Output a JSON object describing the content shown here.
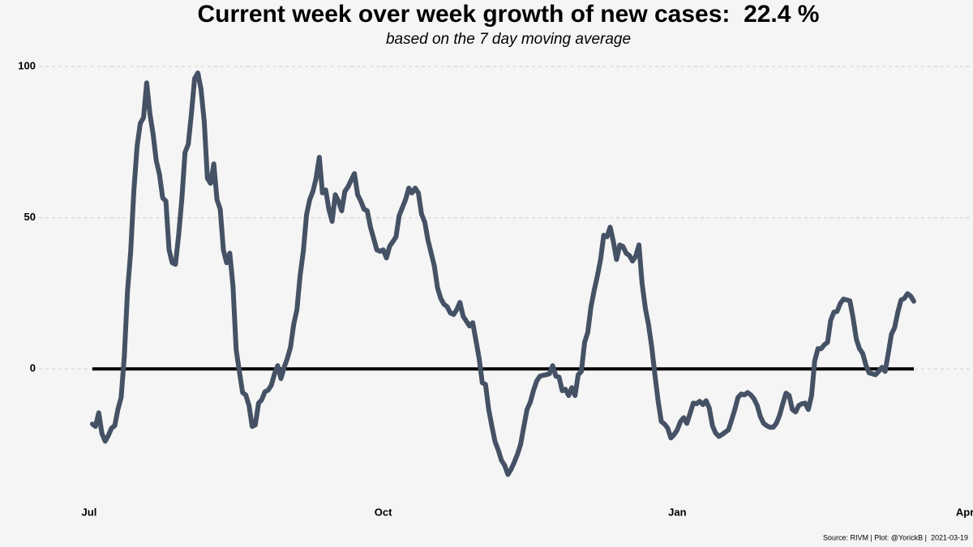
{
  "chart_data": {
    "type": "line",
    "title": "Current week over week growth of new cases:  22.4 %",
    "subtitle": "based on the 7 day moving average",
    "caption": "Source: RIVM | Plot: @YorickB |  2021-03-19",
    "color": "#455265",
    "hline": 0,
    "grid": true,
    "xlim": [
      -1,
      276
    ],
    "xticks": [
      {
        "value": 0,
        "label": "Jul"
      },
      {
        "value": 92,
        "label": "Oct"
      },
      {
        "value": 184,
        "label": "Jan"
      },
      {
        "value": 274,
        "label": "Apr"
      }
    ],
    "ylim": [
      -42,
      107
    ],
    "yticks": [
      0,
      50,
      100
    ],
    "x": [
      1,
      2,
      3,
      4,
      5,
      6,
      7,
      8,
      9,
      10,
      11,
      12,
      13,
      14,
      15,
      16,
      17,
      18,
      19,
      20,
      21,
      22,
      23,
      24,
      25,
      26,
      27,
      28,
      29,
      30,
      31,
      32,
      33,
      34,
      35,
      36,
      37,
      38,
      39,
      40,
      41,
      42,
      43,
      44,
      45,
      46,
      47,
      48,
      49,
      50,
      51,
      52,
      53,
      54,
      55,
      56,
      57,
      58,
      59,
      60,
      61,
      62,
      63,
      64,
      65,
      66,
      67,
      68,
      69,
      70,
      71,
      72,
      73,
      74,
      75,
      76,
      77,
      78,
      79,
      80,
      81,
      82,
      83,
      84,
      85,
      86,
      87,
      88,
      89,
      90,
      91,
      92,
      93,
      94,
      95,
      96,
      97,
      98,
      99,
      100,
      101,
      102,
      103,
      104,
      105,
      106,
      107,
      108,
      109,
      110,
      111,
      112,
      113,
      114,
      115,
      116,
      117,
      118,
      119,
      120,
      121,
      122,
      123,
      124,
      125,
      126,
      127,
      128,
      129,
      130,
      131,
      132,
      133,
      134,
      135,
      136,
      137,
      138,
      139,
      140,
      141,
      142,
      143,
      144,
      145,
      146,
      147,
      148,
      149,
      150,
      151,
      152,
      153,
      154,
      155,
      156,
      157,
      158,
      159,
      160,
      161,
      162,
      163,
      164,
      165,
      166,
      167,
      168,
      169,
      170,
      171,
      172,
      173,
      174,
      175,
      176,
      177,
      178,
      179,
      180,
      181,
      182,
      183,
      184,
      185,
      186,
      187,
      188,
      189,
      190,
      191,
      192,
      193,
      194,
      195,
      196,
      197,
      198,
      199,
      200,
      201,
      202,
      203,
      204,
      205,
      206,
      207,
      208,
      209,
      210,
      211,
      212,
      213,
      214,
      215,
      216,
      217,
      218,
      219,
      220,
      221,
      222,
      223,
      224,
      225,
      226,
      227,
      228,
      229,
      230,
      231,
      232,
      233,
      234,
      235,
      236,
      237,
      238,
      239,
      240,
      241,
      242,
      243,
      244,
      245,
      246,
      247,
      248,
      249,
      250,
      251,
      252,
      253,
      254,
      255,
      256,
      257,
      258
    ],
    "values": [
      -18.2,
      -19,
      -14.5,
      -21.4,
      -23.9,
      -22,
      -19.6,
      -18.8,
      -13.4,
      -9.4,
      4,
      25.5,
      38.9,
      59,
      73.7,
      81.2,
      83.1,
      94.6,
      84.5,
      77.7,
      68.9,
      64.3,
      56.6,
      55.5,
      39.4,
      35.1,
      34.6,
      44.2,
      56.3,
      71.6,
      74.3,
      84.5,
      96,
      97.9,
      92.5,
      81.8,
      63,
      61.4,
      67.8,
      56,
      52.8,
      39.4,
      35.1,
      38.3,
      27.6,
      6.2,
      -0.8,
      -7.8,
      -8.6,
      -12.1,
      -19,
      -18.5,
      -11.3,
      -10.2,
      -7.5,
      -7,
      -5.4,
      -1.6,
      1.1,
      -3.2,
      0.5,
      3.5,
      7.2,
      14.7,
      19.6,
      30.8,
      38.9,
      50.9,
      56,
      58.7,
      63,
      70,
      58.2,
      59.2,
      52.8,
      48.8,
      57.6,
      55.5,
      52.3,
      58.7,
      60.3,
      62.5,
      64.6,
      57.6,
      55.5,
      52.8,
      52.3,
      46.9,
      43.2,
      39.4,
      38.9,
      39.4,
      36.7,
      40.5,
      42.1,
      43.7,
      50.7,
      53.4,
      56,
      59.8,
      58.2,
      59.8,
      58.2,
      51.2,
      48.5,
      42.6,
      38.3,
      34,
      26.8,
      23.3,
      21.4,
      20.6,
      18.5,
      18,
      19.6,
      22,
      17.4,
      15.8,
      14.2,
      15.3,
      9.4,
      3.5,
      -4.6,
      -5.1,
      -13.4,
      -19,
      -24.1,
      -26.8,
      -30.3,
      -31.9,
      -34.9,
      -33.2,
      -30.8,
      -28.2,
      -24.9,
      -19,
      -13.4,
      -11,
      -7.2,
      -4,
      -2.4,
      -2.1,
      -1.9,
      -1.6,
      1.1,
      -2.4,
      -2.7,
      -7.2,
      -6.7,
      -8.8,
      -6.2,
      -8.8,
      -1.9,
      -0.8,
      8.8,
      12.1,
      20.6,
      26,
      30.8,
      36.2,
      44.2,
      43.7,
      46.9,
      42.1,
      36.2,
      41,
      40.5,
      38.3,
      37.5,
      35.7,
      37.3,
      41,
      28.2,
      20.1,
      14.7,
      7.2,
      -1.9,
      -10.7,
      -17.4,
      -18.2,
      -19.6,
      -22.8,
      -21.7,
      -20.1,
      -17.4,
      -16.1,
      -18,
      -14.7,
      -11.3,
      -11.5,
      -10.7,
      -11.8,
      -10.5,
      -12.9,
      -18.8,
      -21.2,
      -22.3,
      -21.7,
      -20.9,
      -20.1,
      -16.9,
      -13.4,
      -9.4,
      -8.3,
      -8.6,
      -7.8,
      -8.6,
      -9.9,
      -12.1,
      -15.8,
      -18,
      -18.8,
      -19.3,
      -19.3,
      -18,
      -15.3,
      -11.5,
      -8,
      -8.8,
      -13.4,
      -14.2,
      -12.1,
      -11.5,
      -11.3,
      -13.4,
      -8.8,
      2.7,
      6.7,
      6.7,
      8,
      8.8,
      16.1,
      18.8,
      19,
      21.7,
      23.1,
      22.8,
      22.5,
      16.9,
      9.9,
      6.7,
      5.1,
      1.3,
      -1.3,
      -1.6,
      -1.9,
      -0.8,
      0.5,
      -0.8,
      5.1,
      11.5,
      13.7,
      18.8,
      22.8,
      23.3,
      24.9,
      24.1,
      22.4
    ]
  }
}
